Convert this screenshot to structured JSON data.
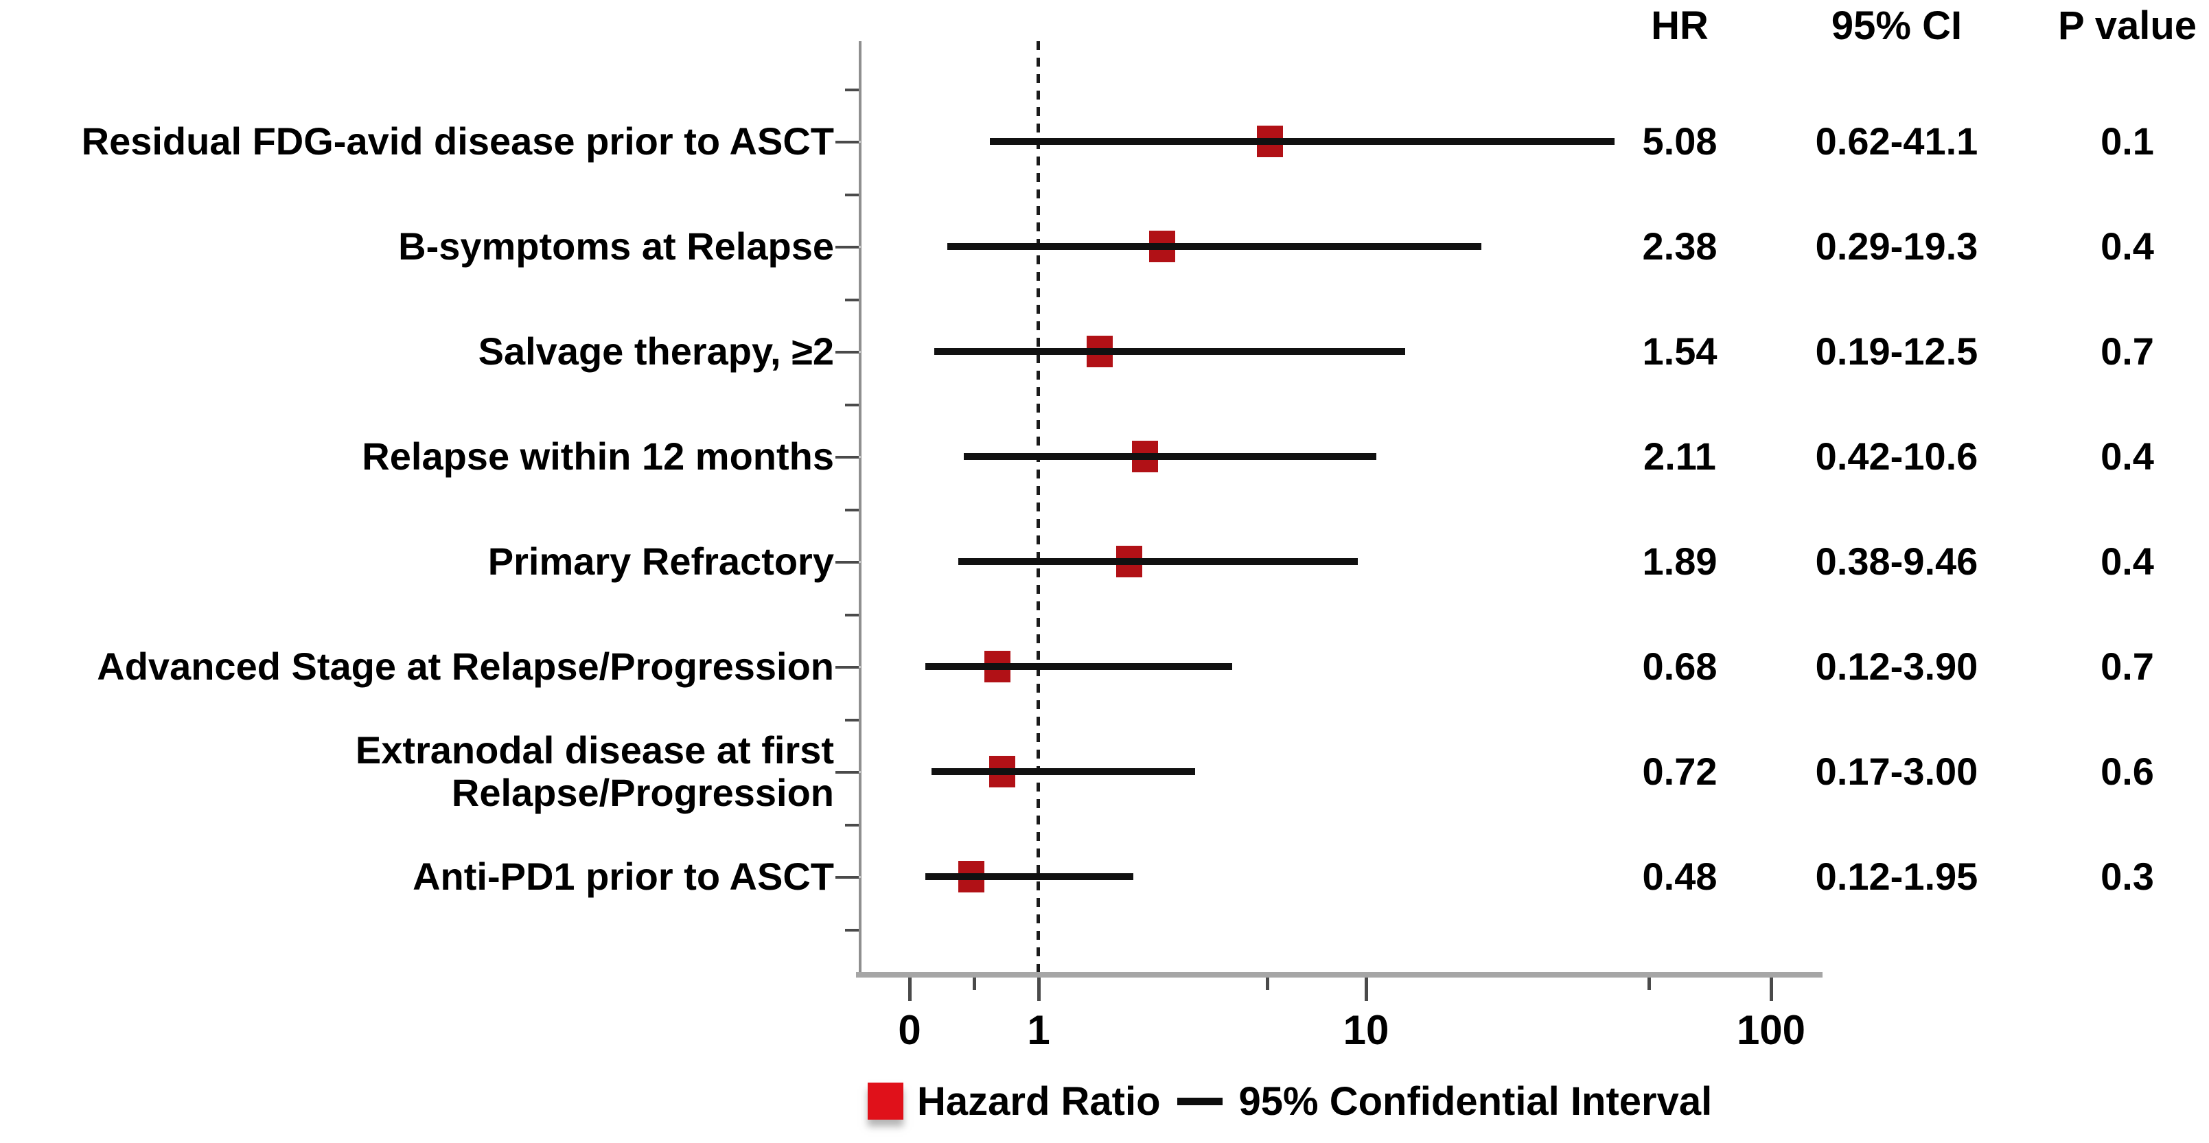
{
  "table": {
    "headers": {
      "hr": "HR",
      "ci": "95% CI",
      "p": "P value"
    }
  },
  "legend": {
    "marker_label": "Hazard Ratio",
    "line_label": "95% Confidential Interval"
  },
  "colors": {
    "marker_red": "#b11116",
    "legend_red": "#e0111a",
    "ci_line_black": "#111111",
    "axis_gray": "#a6a6a6",
    "tick_gray": "#4a4a4a",
    "leader_gray": "#c8c8c8",
    "reference_dash_black": "#1a1a1a",
    "text_black": "#000000"
  },
  "chart_data": {
    "type": "scatter",
    "subtype": "forest-plot",
    "title": "",
    "xlabel": "",
    "ylabel": "",
    "x_axis": {
      "scale": "log above 1, linear 0-1",
      "major_ticks": [
        0,
        1,
        10,
        100
      ],
      "major_tick_labels": [
        "0",
        "1",
        "10",
        "100"
      ],
      "minor_ticks": [
        0.5,
        5,
        50
      ],
      "reference_line_at": 1,
      "grid": false
    },
    "legend_position": "bottom",
    "rows": [
      {
        "label": "Residual FDG-avid disease prior to ASCT",
        "hr": 5.08,
        "ci_lo": 0.62,
        "ci_hi": 41.1,
        "ci_text": "0.62-41.1",
        "p": "0.1"
      },
      {
        "label": "B-symptoms at Relapse",
        "hr": 2.38,
        "ci_lo": 0.29,
        "ci_hi": 19.3,
        "ci_text": "0.29-19.3",
        "p": "0.4"
      },
      {
        "label": "Salvage therapy, ≥2",
        "hr": 1.54,
        "ci_lo": 0.19,
        "ci_hi": 12.5,
        "ci_text": "0.19-12.5",
        "p": "0.7"
      },
      {
        "label": "Relapse within 12 months",
        "hr": 2.11,
        "ci_lo": 0.42,
        "ci_hi": 10.6,
        "ci_text": "0.42-10.6",
        "p": "0.4"
      },
      {
        "label": "Primary Refractory",
        "hr": 1.89,
        "ci_lo": 0.38,
        "ci_hi": 9.46,
        "ci_text": "0.38-9.46",
        "p": "0.4"
      },
      {
        "label": "Advanced Stage at Relapse/Progression",
        "hr": 0.68,
        "ci_lo": 0.12,
        "ci_hi": 3.9,
        "ci_text": "0.12-3.90",
        "p": "0.7"
      },
      {
        "label": "Extranodal disease at first\nRelapse/Progression",
        "hr": 0.72,
        "ci_lo": 0.17,
        "ci_hi": 3.0,
        "ci_text": "0.17-3.00",
        "p": "0.6"
      },
      {
        "label": "Anti-PD1 prior to ASCT",
        "hr": 0.48,
        "ci_lo": 0.12,
        "ci_hi": 1.95,
        "ci_text": "0.12-1.95",
        "p": "0.3"
      }
    ]
  }
}
